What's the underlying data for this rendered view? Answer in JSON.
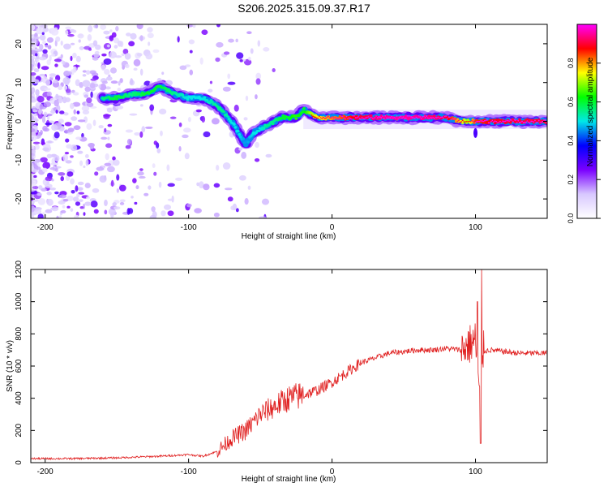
{
  "page": {
    "title": "S206.2025.315.09.37.R17"
  },
  "colorbar": {
    "label": "Normalized spectral amplitude",
    "ticks": [
      0.0,
      0.2,
      0.4,
      0.6,
      0.8
    ],
    "range": [
      0,
      1
    ],
    "colors": [
      "#ffffff",
      "#d8c8ff",
      "#7a00ff",
      "#0000ff",
      "#00e8e8",
      "#00ff00",
      "#ffff00",
      "#ff0000",
      "#ff00ff"
    ]
  },
  "chart_data": [
    {
      "type": "heatmap",
      "title": "",
      "xlabel": "Height of straight line (km)",
      "ylabel": "Frequency (Hz)",
      "xlim": [
        -210,
        150
      ],
      "ylim": [
        -25,
        25
      ],
      "xticks": [
        -200,
        -100,
        0,
        100
      ],
      "yticks": [
        -20,
        -10,
        0,
        10,
        20
      ],
      "ridge": {
        "x": [
          -160,
          -150,
          -140,
          -130,
          -120,
          -110,
          -100,
          -90,
          -80,
          -75,
          -70,
          -65,
          -60,
          -55,
          -50,
          -45,
          -40,
          -35,
          -30,
          -25,
          -20,
          -15,
          -10,
          0,
          20,
          40,
          60,
          80,
          90,
          95,
          100,
          120,
          150
        ],
        "y": [
          6,
          6,
          7,
          7,
          9,
          7,
          6,
          6,
          4,
          2,
          0,
          -3,
          -6,
          -3,
          -2,
          -1,
          0,
          1,
          1,
          1,
          3,
          2,
          1,
          1,
          1,
          1,
          1,
          1,
          0,
          0,
          0,
          0,
          0
        ],
        "amplitude": [
          0.55,
          0.6,
          0.55,
          0.6,
          0.6,
          0.55,
          0.5,
          0.5,
          0.55,
          0.55,
          0.5,
          0.5,
          0.45,
          0.5,
          0.5,
          0.55,
          0.55,
          0.6,
          0.6,
          0.65,
          0.6,
          0.7,
          0.75,
          0.8,
          0.9,
          0.95,
          0.95,
          0.9,
          0.75,
          0.7,
          0.85,
          0.9,
          0.9
        ]
      }
    },
    {
      "type": "line",
      "title": "",
      "xlabel": "Height of straight line (km)",
      "ylabel": "SNR (10 * v/v)",
      "xlim": [
        -210,
        150
      ],
      "ylim": [
        0,
        1200
      ],
      "xticks": [
        -200,
        -100,
        0,
        100
      ],
      "yticks": [
        0,
        200,
        400,
        600,
        800,
        1000,
        1200
      ],
      "color": "#e02020",
      "series": [
        {
          "x": [
            -210,
            -180,
            -150,
            -120,
            -100,
            -90,
            -80,
            -70,
            -60,
            -50,
            -40,
            -30,
            -20,
            -10,
            0,
            10,
            20,
            30,
            40,
            50,
            60,
            70,
            80,
            90,
            95,
            100,
            103,
            105,
            110,
            120,
            130,
            140,
            150
          ],
          "values": [
            25,
            25,
            30,
            40,
            50,
            40,
            70,
            150,
            200,
            300,
            350,
            400,
            420,
            450,
            500,
            560,
            620,
            650,
            680,
            690,
            700,
            700,
            710,
            700,
            730,
            760,
            400,
            690,
            700,
            690,
            680,
            680,
            680
          ]
        }
      ]
    }
  ]
}
